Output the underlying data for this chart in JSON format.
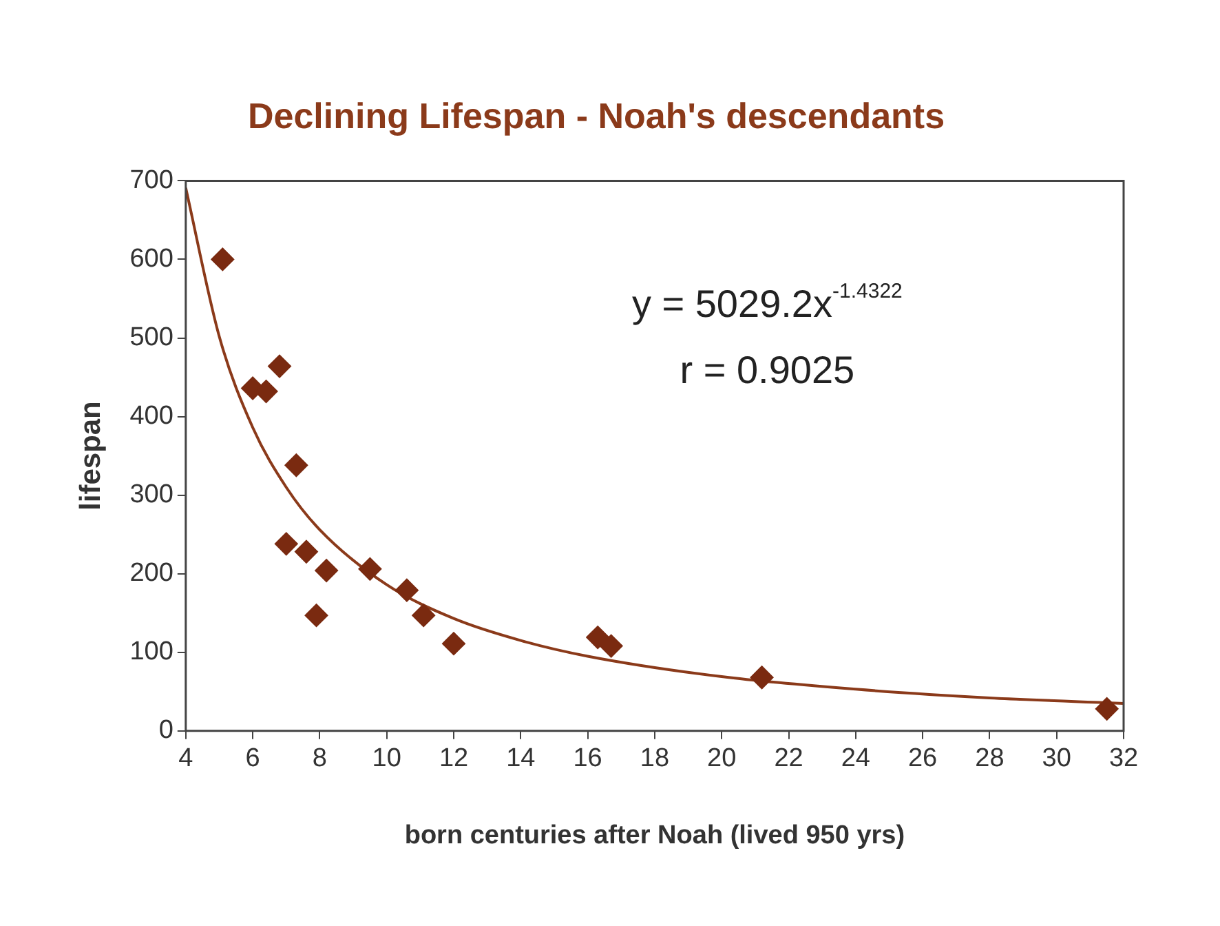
{
  "chart_data": {
    "type": "scatter",
    "title": "Declining Lifespan - Noah's descendants",
    "xlabel": "born centuries after Noah (lived 950 yrs)",
    "ylabel": "lifespan",
    "xlim": [
      4,
      32
    ],
    "xticks": [
      4,
      6,
      8,
      10,
      12,
      14,
      16,
      18,
      20,
      22,
      24,
      26,
      28,
      30,
      32
    ],
    "ylim": [
      0,
      700
    ],
    "yticks": [
      0,
      100,
      200,
      300,
      400,
      500,
      600,
      700
    ],
    "grid": false,
    "legend": false,
    "marker": "diamond",
    "series": [
      {
        "color": "#7a2a10",
        "x": [
          5.1,
          6.0,
          6.4,
          6.8,
          7.3,
          7.0,
          7.6,
          7.9,
          8.2,
          9.5,
          10.6,
          11.1,
          12.0,
          16.3,
          16.7,
          21.2,
          31.5
        ],
        "values": [
          600,
          436,
          432,
          464,
          338,
          238,
          228,
          147,
          204,
          206,
          179,
          147,
          111,
          119,
          108,
          68,
          28
        ]
      },
      {
        "type": "line",
        "color": "#8b3a1a",
        "marker": "none",
        "line_style": "solid",
        "x": [
          4,
          5,
          6,
          7,
          8,
          10,
          12,
          14,
          16,
          20,
          24,
          28,
          32
        ],
        "values": [
          691,
          502,
          386,
          310,
          256,
          186,
          143,
          115,
          95,
          69,
          53,
          42,
          35
        ]
      }
    ],
    "annotations": [
      "y = 5029.2x$^{-1.4322}$",
      "r = 0.9025"
    ]
  }
}
